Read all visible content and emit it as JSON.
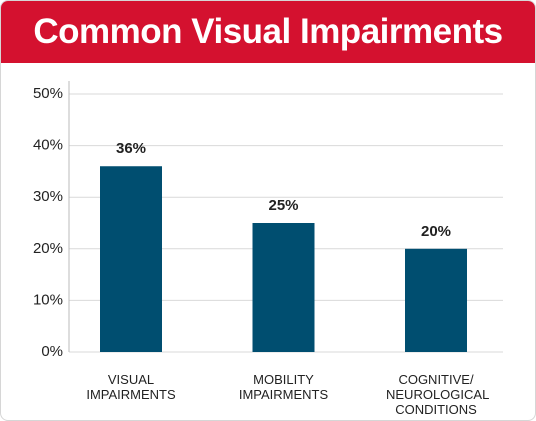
{
  "chart_data": {
    "type": "bar",
    "title": "Common Visual Impairments",
    "categories": [
      "VISUAL IMPAIRMENTS",
      "MOBILITY IMPAIRMENTS",
      "COGNITIVE/ NEUROLOGICAL CONDITIONS"
    ],
    "values": [
      36,
      25,
      20
    ],
    "value_labels": [
      "36%",
      "25%",
      "20%"
    ],
    "color": "#004e70",
    "ylim": [
      0,
      50
    ],
    "yticks": [
      {
        "value": 0,
        "label": "0%"
      },
      {
        "value": 10,
        "label": "10%"
      },
      {
        "value": 20,
        "label": "20%"
      },
      {
        "value": 30,
        "label": "30%"
      },
      {
        "value": 40,
        "label": "40%"
      },
      {
        "value": 50,
        "label": "50%"
      }
    ],
    "grid": true
  }
}
